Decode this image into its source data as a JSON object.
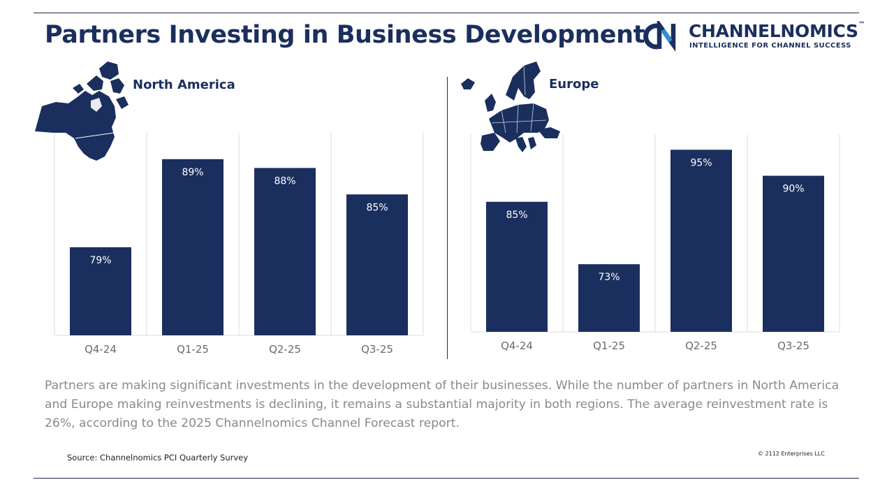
{
  "title": "Partners Investing in Business Development",
  "logo": {
    "name": "CHANNELNOMICS",
    "trademark": "™",
    "tagline": "INTELLIGENCE FOR CHANNEL SUCCESS",
    "icon": "channelnomics-cn-logo-icon"
  },
  "colors": {
    "brand_navy": "#1b2f5e",
    "bar_fill": "#1b2f5e",
    "bar_label": "#ffffff",
    "tick_label": "#6b6b6b",
    "grid": "#dcdcdc",
    "logo_accent": "#2f8fd0"
  },
  "chart_data": [
    {
      "type": "bar",
      "title": "North America",
      "map_icon": "north-america-map-icon",
      "categories": [
        "Q4-24",
        "Q1-25",
        "Q2-25",
        "Q3-25"
      ],
      "values": [
        79,
        89,
        88,
        85
      ],
      "value_labels": [
        "79%",
        "89%",
        "88%",
        "85%"
      ],
      "ylim": [
        69,
        92
      ],
      "xlabel": "",
      "ylabel": "",
      "grid": "vertical category separators",
      "legend": "none"
    },
    {
      "type": "bar",
      "title": "Europe",
      "map_icon": "europe-map-icon",
      "categories": [
        "Q4-24",
        "Q1-25",
        "Q2-25",
        "Q3-25"
      ],
      "values": [
        85,
        73,
        95,
        90
      ],
      "value_labels": [
        "85%",
        "73%",
        "95%",
        "90%"
      ],
      "ylim": [
        60,
        98
      ],
      "xlabel": "",
      "ylabel": "",
      "grid": "vertical category separators",
      "legend": "none"
    }
  ],
  "summary": "Partners are making significant investments in the development of their businesses. While the number of partners in North America and Europe making reinvestments is declining, it remains a substantial majority in both regions. The average reinvestment rate is 26%, according to the 2025 Channelnomics Channel Forecast report.",
  "source": "Source: Channelnomics PCI Quarterly Survey",
  "copyright": "© 2112 Enterprises LLC"
}
